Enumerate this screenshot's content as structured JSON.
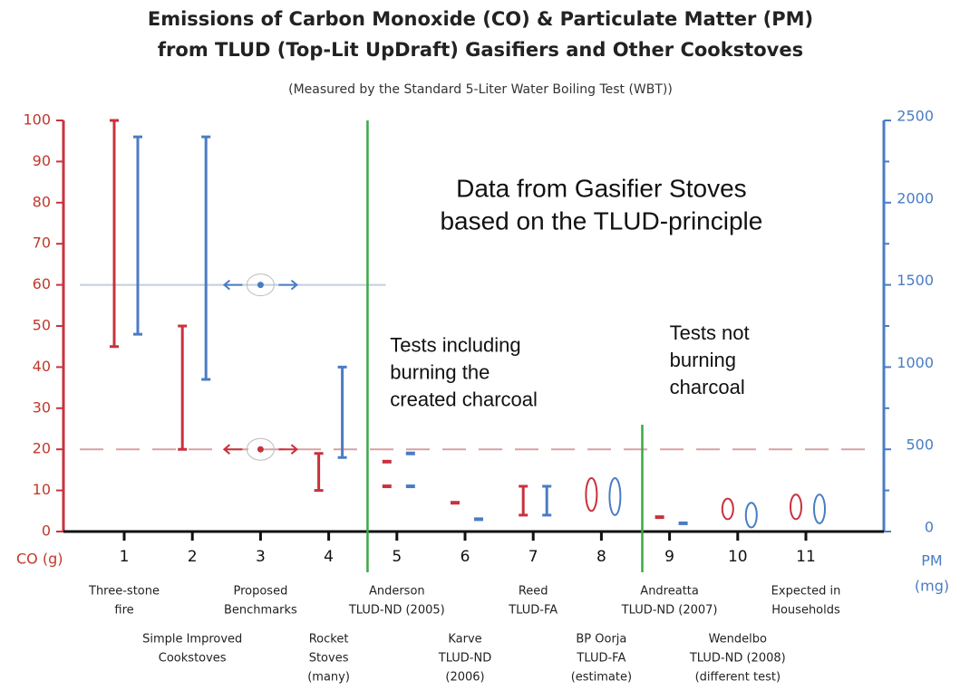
{
  "chart_data": {
    "type": "range",
    "title": [
      "Emissions of Carbon Monoxide (CO) & Particulate Matter (PM)",
      "from TLUD (Top-Lit UpDraft) Gasifiers and Other Cookstoves"
    ],
    "subtitle": "(Measured by the Standard 5-Liter Water Boiling Test (WBT))",
    "y_label": "CO (g)",
    "y2_label": [
      "PM",
      "(mg)"
    ],
    "categories": [
      "1",
      "2",
      "3",
      "4",
      "5",
      "6",
      "7",
      "8",
      "9",
      "10",
      "11"
    ],
    "category_names": [
      [
        "Three-stone",
        "fire"
      ],
      [
        "Simple Improved",
        "Cookstoves"
      ],
      [
        "Proposed",
        "Benchmarks"
      ],
      [
        "Rocket",
        "Stoves",
        "(many)"
      ],
      [
        "Anderson",
        "TLUD-ND (2005)"
      ],
      [
        "Karve",
        "TLUD-ND",
        "(2006)"
      ],
      [
        "Reed",
        "TLUD-FA"
      ],
      [
        "BP Oorja",
        "TLUD-FA",
        "(estimate)"
      ],
      [
        "Andreatta",
        "TLUD-ND (2007)"
      ],
      [
        "Wendelbo",
        "TLUD-ND (2008)",
        "(different test)"
      ],
      [
        "Expected in",
        "Households"
      ]
    ],
    "series": [
      {
        "name": "CO",
        "axis": "y",
        "color": "#c8323c",
        "low": [
          45,
          20,
          20,
          10,
          11,
          7,
          4,
          5,
          3.5,
          3,
          3
        ],
        "high": [
          100,
          50,
          null,
          19,
          17,
          null,
          11,
          13,
          null,
          8,
          9
        ],
        "mark_style": [
          "bar",
          "bar",
          "point",
          "bar",
          "dashes",
          "dash",
          "bar",
          "ellipse",
          "dash",
          "ellipse",
          "ellipse"
        ]
      },
      {
        "name": "PM",
        "axis": "y2",
        "color": "#4a7cc4",
        "low": [
          1200,
          925,
          1500,
          450,
          275,
          75,
          100,
          100,
          50,
          25,
          50
        ],
        "high": [
          2400,
          2400,
          null,
          1000,
          475,
          null,
          275,
          325,
          null,
          175,
          225
        ],
        "mark_style": [
          "bar",
          "bar",
          "point",
          "bar",
          "dashes",
          "dash",
          "bar",
          "ellipse",
          "dash",
          "ellipse",
          "ellipse"
        ]
      }
    ],
    "ylim": [
      0,
      100
    ],
    "yticks": [
      0,
      10,
      20,
      30,
      40,
      50,
      60,
      70,
      80,
      90,
      100
    ],
    "y2lim": [
      0,
      2500
    ],
    "y2ticks": [
      0,
      500,
      1000,
      1500,
      2000,
      2500
    ],
    "y2minor_ticks": [
      250,
      750,
      1250,
      1750,
      2250
    ],
    "reference_lines": [
      {
        "axis": "y",
        "value": 20,
        "color": "#d9a0a4",
        "dashed": true
      },
      {
        "axis": "y2",
        "value": 1500,
        "color": "#c3cede",
        "dashed": false
      }
    ],
    "dividers": [
      {
        "x": 4.57,
        "top": 100
      },
      {
        "x": 8.6,
        "top": 26
      }
    ],
    "divider_color": "#3aa845",
    "annotations": [
      {
        "text": [
          "Data from Gasifier Stoves",
          "based on the TLUD-principle"
        ],
        "x": 8,
        "y": 83,
        "size": "big"
      },
      {
        "text": [
          "Tests including",
          "burning the",
          "created charcoal"
        ],
        "x": 4.9,
        "y": 45,
        "size": "ann"
      },
      {
        "text": [
          "Tests not",
          "burning",
          "charcoal"
        ],
        "x": 9.0,
        "y": 48,
        "size": "ann"
      }
    ]
  }
}
